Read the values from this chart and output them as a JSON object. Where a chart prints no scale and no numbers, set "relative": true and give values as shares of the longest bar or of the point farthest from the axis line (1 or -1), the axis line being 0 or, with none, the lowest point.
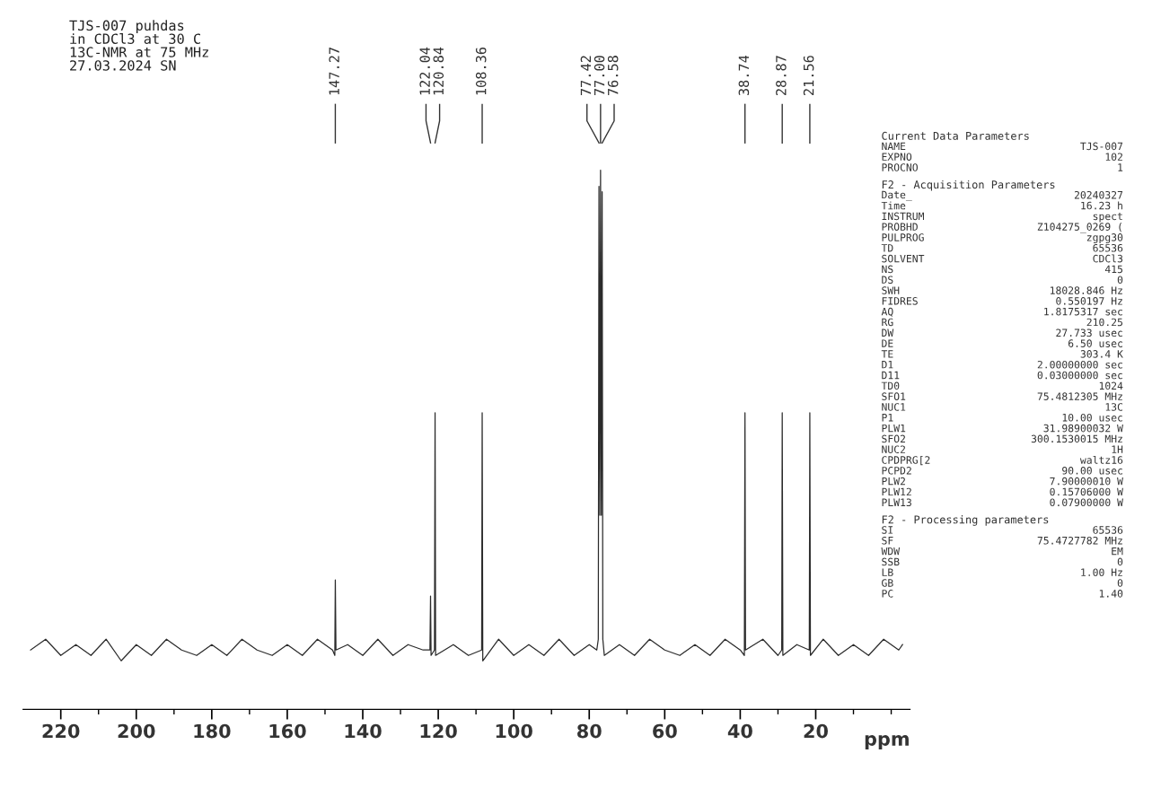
{
  "chart_data": {
    "type": "line",
    "relative": true,
    "title": "TJS-007 puhdas\nin CDCl3 at 30 C\n13C-NMR at 75 MHz\n27.03.2024 SN",
    "xlabel": "ppm",
    "xlim": [
      230,
      -5
    ],
    "xticks": [
      220,
      {
        "value": 210,
        "label": null
      },
      200,
      {
        "value": 190,
        "label": null
      },
      180,
      {
        "value": 170,
        "label": null
      },
      160,
      {
        "value": 150,
        "label": null
      },
      140,
      {
        "value": 130,
        "label": null
      },
      120,
      {
        "value": 110,
        "label": null
      },
      100,
      {
        "value": 90,
        "label": null
      },
      80,
      {
        "value": 70,
        "label": null
      },
      60,
      {
        "value": 50,
        "label": null
      },
      40,
      {
        "value": 30,
        "label": null
      },
      20,
      {
        "value": 10,
        "label": null
      },
      {
        "value": 0,
        "label": null
      }
    ],
    "grid": false,
    "legend": false,
    "marker": "none",
    "line_style": "solid",
    "series": [
      {
        "color": "#2b2b2b",
        "x": [
          228,
          224,
          220,
          216,
          212,
          208,
          204,
          200,
          196,
          192,
          188,
          184,
          180,
          176,
          172,
          168,
          164,
          160,
          156,
          152,
          148,
          147.4,
          147.27,
          147.1,
          144,
          140,
          136,
          132,
          128,
          124,
          122.2,
          122.04,
          121.9,
          121.0,
          120.84,
          120.7,
          116,
          112,
          108.5,
          108.36,
          108.2,
          104,
          100,
          96,
          92,
          88,
          84,
          80,
          78,
          77.6,
          77.42,
          77.2,
          77.0,
          76.8,
          76.58,
          76.4,
          76,
          72,
          68,
          64,
          60,
          56,
          52,
          48,
          44,
          40,
          38.9,
          38.74,
          38.6,
          34,
          30,
          29.0,
          28.87,
          28.7,
          25,
          21.7,
          21.56,
          21.4,
          18,
          14,
          10,
          6,
          2,
          -2,
          -3
        ],
        "values": [
          0.11,
          0.13,
          0.1,
          0.12,
          0.1,
          0.13,
          0.09,
          0.12,
          0.1,
          0.13,
          0.11,
          0.1,
          0.12,
          0.1,
          0.13,
          0.11,
          0.1,
          0.12,
          0.1,
          0.13,
          0.11,
          0.1,
          0.24,
          0.11,
          0.12,
          0.1,
          0.13,
          0.1,
          0.12,
          0.11,
          0.11,
          0.21,
          0.1,
          0.11,
          0.55,
          0.1,
          0.12,
          0.1,
          0.11,
          0.55,
          0.09,
          0.13,
          0.1,
          0.12,
          0.1,
          0.13,
          0.1,
          0.12,
          0.11,
          0.13,
          0.97,
          0.36,
          1.0,
          0.36,
          0.96,
          0.13,
          0.1,
          0.12,
          0.1,
          0.13,
          0.11,
          0.1,
          0.12,
          0.1,
          0.13,
          0.11,
          0.1,
          0.55,
          0.11,
          0.13,
          0.1,
          0.11,
          0.55,
          0.1,
          0.12,
          0.11,
          0.55,
          0.1,
          0.13,
          0.1,
          0.12,
          0.1,
          0.13,
          0.11,
          0.12
        ]
      }
    ],
    "annotations": [
      {
        "text": "147.27",
        "x": 147.27
      },
      {
        "text": "122.04",
        "x": 122.04
      },
      {
        "text": "120.84",
        "x": 120.84
      },
      {
        "text": "108.36",
        "x": 108.36
      },
      {
        "text": "77.42",
        "x": 77.42
      },
      {
        "text": "77.00",
        "x": 77.0
      },
      {
        "text": "76.58",
        "x": 76.58
      },
      {
        "text": "38.74",
        "x": 38.74
      },
      {
        "text": "28.87",
        "x": 28.87
      },
      {
        "text": "21.56",
        "x": 21.56
      },
      "Current Data Parameters",
      "NAME  TJS-007",
      "EXPNO  102",
      "PROCNO  1",
      "F2 - Acquisition Parameters",
      "Date_  20240327",
      "Time  16.23 h",
      "INSTRUM  spect",
      "PROBHD  Z104275_0269 (",
      "PULPROG  zgpg30",
      "TD  65536",
      "SOLVENT  CDCl3",
      "NS  415",
      "DS  0",
      "SWH  18028.846 Hz",
      "FIDRES  0.550197 Hz",
      "AQ  1.8175317 sec",
      "RG  210.25",
      "DW  27.733 usec",
      "DE  6.50 usec",
      "TE  303.4 K",
      "D1  2.00000000 sec",
      "D11  0.03000000 sec",
      "TD0  1024",
      "SFO1  75.4812305 MHz",
      "NUC1  13C",
      "P1  10.00 usec",
      "PLW1  31.98900032 W",
      "SFO2  300.1530015 MHz",
      "NUC2  1H",
      "CPDPRG[2  waltz16",
      "PCPD2  90.00 usec",
      "PLW2  7.90000010 W",
      "PLW12  0.15706000 W",
      "PLW13  0.07900000 W",
      "F2 - Processing parameters",
      "SI  65536",
      "SF  75.4727782 MHz",
      "WDW  EM",
      "SSB  0",
      "LB  1.00 Hz",
      "GB  0",
      "PC  1.40"
    ]
  }
}
